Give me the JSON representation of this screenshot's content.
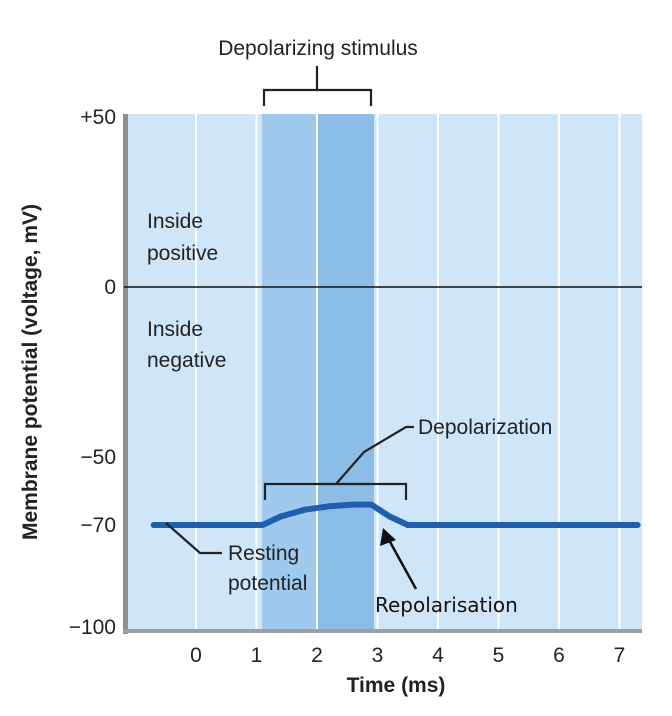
{
  "chart_data": {
    "type": "line",
    "title": "",
    "xlabel": "Time (ms)",
    "ylabel": "Membrane potential (voltage, mV)",
    "xlim": [
      -1,
      7.3
    ],
    "ylim": [
      -100,
      50
    ],
    "x_ticks": [
      0,
      1,
      2,
      3,
      4,
      5,
      6,
      7
    ],
    "x_tick_labels": [
      "0",
      "1",
      "2",
      "3",
      "4",
      "5",
      "6",
      "7"
    ],
    "y_ticks": [
      50,
      0,
      -50,
      -70,
      -100
    ],
    "y_tick_labels": [
      "+50",
      "0",
      "−50",
      "−70",
      "−100"
    ],
    "stimulus_window": [
      1.1,
      2.9
    ],
    "series": [
      {
        "name": "Membrane potential",
        "color": "#1f5fae",
        "x": [
          -0.7,
          1.1,
          1.4,
          1.8,
          2.2,
          2.6,
          2.9,
          3.2,
          3.5,
          5.0,
          7.3
        ],
        "y": [
          -70,
          -70,
          -67.5,
          -65.5,
          -64.5,
          -64,
          -64,
          -67.5,
          -70,
          -70,
          -70
        ]
      }
    ],
    "annotations": {
      "stimulus": "Depolarizing stimulus",
      "inside_positive_1": "Inside",
      "inside_positive_2": "positive",
      "inside_negative_1": "Inside",
      "inside_negative_2": "negative",
      "depolarization": "Depolarization",
      "resting_1": "Resting",
      "resting_2": "potential",
      "repolarisation": "Repolarisation"
    },
    "colors": {
      "panel": "#cfe6f8",
      "stimulus_band": "#9fcaee",
      "stimulus_band_dark": "#8cbde6",
      "grid": "#ffffff",
      "trace": "#1f5fae",
      "axis": "#8a9196",
      "zero_line": "#111111"
    }
  }
}
